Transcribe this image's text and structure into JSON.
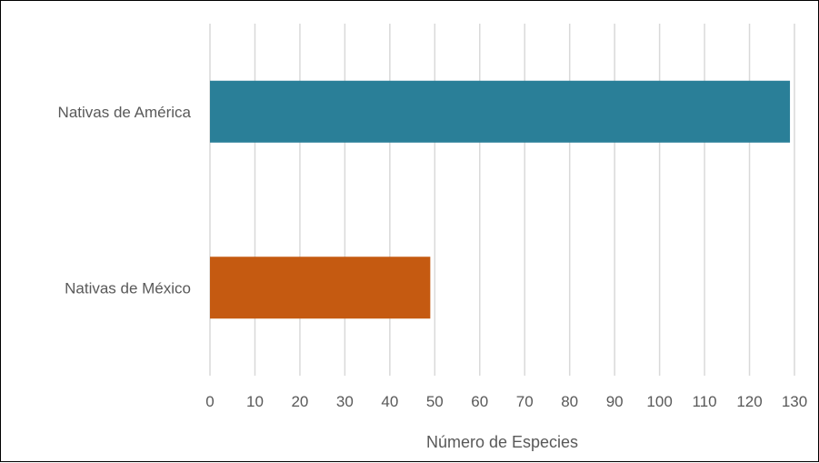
{
  "chart_data": {
    "type": "bar",
    "orientation": "horizontal",
    "categories": [
      "Nativas de América",
      "Nativas de México"
    ],
    "values": [
      129,
      49
    ],
    "colors": [
      "#2a7f98",
      "#c55a11"
    ],
    "xlabel": "Número de Especies",
    "ylabel": "",
    "title": "",
    "xlim": [
      0,
      130
    ],
    "xticks": [
      0,
      10,
      20,
      30,
      40,
      50,
      60,
      70,
      80,
      90,
      100,
      110,
      120,
      130
    ],
    "grid": "vertical",
    "legend": "none"
  }
}
